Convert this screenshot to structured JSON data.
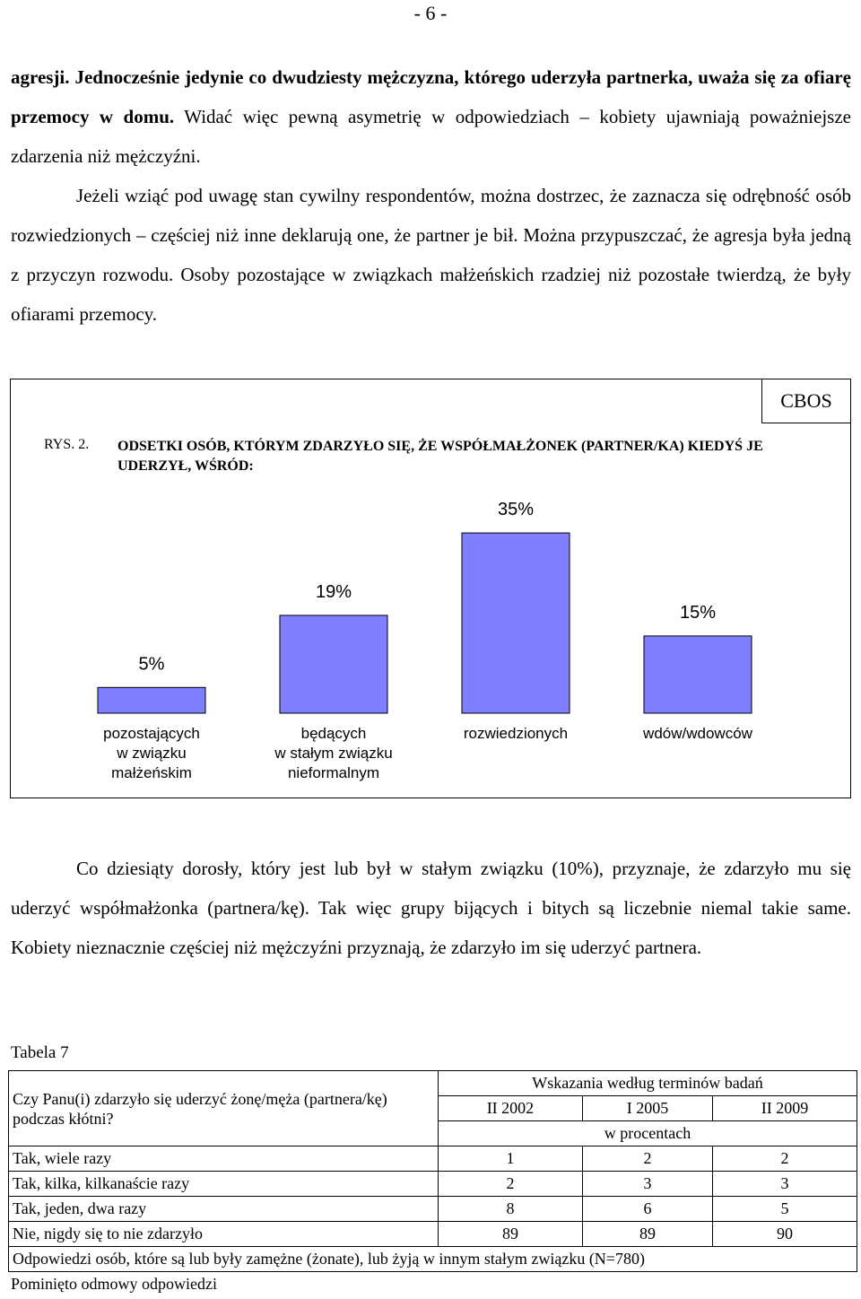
{
  "page_number": "- 6 -",
  "para1": {
    "bold": "agresji. Jednocześnie jedynie co dwudziesty mężczyzna, którego uderzyła partnerka, uważa się za ofiarę przemocy w domu.",
    "rest": " Widać więc pewną asymetrię w odpowiedziach – kobiety ujawniają poważniejsze zdarzenia niż mężczyźni."
  },
  "para2": "Jeżeli wziąć pod uwagę stan cywilny respondentów, można dostrzec, że zaznacza się odrębność osób rozwiedzionych – częściej niż inne deklarują one, że partner je bił. Można przypuszczać, że agresja była jedną z przyczyn rozwodu. Osoby pozostające w związkach małżeńskich rzadziej niż pozostałe twierdzą, że były ofiarami przemocy.",
  "figure": {
    "source": "CBOS",
    "label": "RYS. 2.",
    "title": "ODSETKI OSÓB, KTÓRYM ZDARZYŁO SIĘ, ŻE WSPÓŁMAŁŻONEK (PARTNER/KA) KIEDYŚ JE UDERZYŁ, WŚRÓD:"
  },
  "chart_data": {
    "type": "bar",
    "title": "ODSETKI OSÓB, KTÓRYM ZDARZYŁO SIĘ, ŻE WSPÓŁMAŁŻONEK (PARTNER/KA) KIEDYŚ JE UDERZYŁ, WŚRÓD:",
    "categories": [
      "pozostających w związku małżeńskim",
      "będących w stałym związku nieformalnym",
      "rozwiedzionych",
      "wdów/wdowców"
    ],
    "category_lines": [
      [
        "pozostających",
        "w związku",
        "małżeńskim"
      ],
      [
        "będących",
        "w stałym związku",
        "nieformalnym"
      ],
      [
        "rozwiedzionych"
      ],
      [
        "wdów/wdowców"
      ]
    ],
    "values": [
      5,
      19,
      35,
      15
    ],
    "value_labels": [
      "5%",
      "19%",
      "35%",
      "15%"
    ],
    "unit": "%",
    "bar_color": "#8080ff",
    "grid": false,
    "legend": "none"
  },
  "para3": "Co dziesiąty dorosły, który jest lub był w stałym związku (10%), przyznaje, że zdarzyło mu się uderzyć współmałżonka (partnera/kę). Tak więc grupy bijących i bitych są liczebnie niemal takie same. Kobiety nieznacznie częściej niż mężczyźni przyznają, że zdarzyło im się uderzyć partnera.",
  "table": {
    "caption": "Tabela 7",
    "question": "Czy Panu(i) zdarzyło się uderzyć żonę/męża (partnera/kę) podczas kłótni?",
    "group_header": "Wskazania według terminów badań",
    "columns": [
      "II 2002",
      "I 2005",
      "II 2009"
    ],
    "unit_row": "w procentach",
    "rows": [
      {
        "label": "Tak, wiele razy",
        "values": [
          "1",
          "2",
          "2"
        ]
      },
      {
        "label": "Tak, kilka, kilkanaście razy",
        "values": [
          "2",
          "3",
          "3"
        ]
      },
      {
        "label": "Tak, jeden, dwa razy",
        "values": [
          "8",
          "6",
          "5"
        ]
      },
      {
        "label": "Nie, nigdy się to nie zdarzyło",
        "values": [
          "89",
          "89",
          "90"
        ]
      }
    ],
    "note": "Odpowiedzi osób, które są lub były zamężne (żonate), lub żyją w innym stałym związku (N=780)"
  },
  "footnote": "Pominięto odmowy odpowiedzi"
}
